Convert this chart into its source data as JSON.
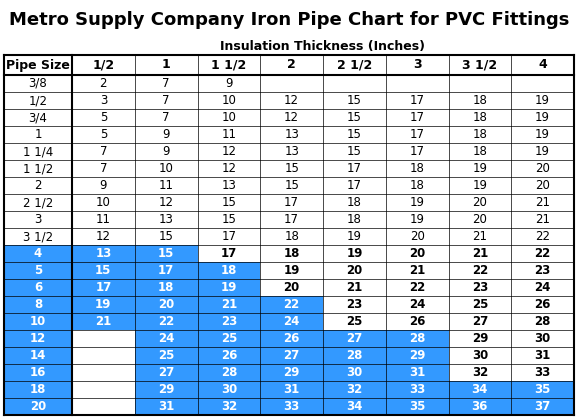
{
  "title": "Metro Supply Company Iron Pipe Chart for PVC Fittings",
  "subtitle": "Insulation Thickness (Inches)",
  "col_label": "Pipe Size",
  "columns": [
    "1/2",
    "1",
    "1 1/2",
    "2",
    "2 1/2",
    "3",
    "3 1/2",
    "4"
  ],
  "rows": [
    {
      "pipe": "3/8",
      "bold": false,
      "values": [
        2,
        7,
        9,
        null,
        null,
        null,
        null,
        null
      ],
      "blue_cols": []
    },
    {
      "pipe": "1/2",
      "bold": false,
      "values": [
        3,
        7,
        10,
        12,
        15,
        17,
        18,
        19
      ],
      "blue_cols": []
    },
    {
      "pipe": "3/4",
      "bold": false,
      "values": [
        5,
        7,
        10,
        12,
        15,
        17,
        18,
        19
      ],
      "blue_cols": []
    },
    {
      "pipe": "1",
      "bold": false,
      "values": [
        5,
        9,
        11,
        13,
        15,
        17,
        18,
        19
      ],
      "blue_cols": []
    },
    {
      "pipe": "1 1/4",
      "bold": false,
      "values": [
        7,
        9,
        12,
        13,
        15,
        17,
        18,
        19
      ],
      "blue_cols": []
    },
    {
      "pipe": "1 1/2",
      "bold": false,
      "values": [
        7,
        10,
        12,
        15,
        17,
        18,
        19,
        20
      ],
      "blue_cols": []
    },
    {
      "pipe": "2",
      "bold": false,
      "values": [
        9,
        11,
        13,
        15,
        17,
        18,
        19,
        20
      ],
      "blue_cols": []
    },
    {
      "pipe": "2 1/2",
      "bold": false,
      "values": [
        10,
        12,
        15,
        17,
        18,
        19,
        20,
        21
      ],
      "blue_cols": []
    },
    {
      "pipe": "3",
      "bold": false,
      "values": [
        11,
        13,
        15,
        17,
        18,
        19,
        20,
        21
      ],
      "blue_cols": []
    },
    {
      "pipe": "3 1/2",
      "bold": false,
      "values": [
        12,
        15,
        17,
        18,
        19,
        20,
        21,
        22
      ],
      "blue_cols": []
    },
    {
      "pipe": "4",
      "bold": true,
      "values": [
        13,
        15,
        17,
        18,
        19,
        20,
        21,
        22
      ],
      "blue_cols": [
        0,
        1
      ],
      "blue_pipe": true
    },
    {
      "pipe": "5",
      "bold": true,
      "values": [
        15,
        17,
        18,
        19,
        20,
        21,
        22,
        23
      ],
      "blue_cols": [
        0,
        1,
        2
      ],
      "blue_pipe": true
    },
    {
      "pipe": "6",
      "bold": true,
      "values": [
        17,
        18,
        19,
        20,
        21,
        22,
        23,
        24
      ],
      "blue_cols": [
        0,
        1,
        2
      ],
      "blue_pipe": true
    },
    {
      "pipe": "8",
      "bold": true,
      "values": [
        19,
        20,
        21,
        22,
        23,
        24,
        25,
        26
      ],
      "blue_cols": [
        0,
        1,
        2,
        3
      ],
      "blue_pipe": true
    },
    {
      "pipe": "10",
      "bold": true,
      "values": [
        21,
        22,
        23,
        24,
        25,
        26,
        27,
        28
      ],
      "blue_cols": [
        0,
        1,
        2,
        3
      ],
      "blue_pipe": true
    },
    {
      "pipe": "12",
      "bold": true,
      "values": [
        null,
        24,
        25,
        26,
        27,
        28,
        29,
        30
      ],
      "blue_cols": [
        1,
        2,
        3,
        4,
        5
      ],
      "blue_pipe": true
    },
    {
      "pipe": "14",
      "bold": true,
      "values": [
        null,
        25,
        26,
        27,
        28,
        29,
        30,
        31
      ],
      "blue_cols": [
        1,
        2,
        3,
        4,
        5
      ],
      "blue_pipe": true
    },
    {
      "pipe": "16",
      "bold": true,
      "values": [
        null,
        27,
        28,
        29,
        30,
        31,
        32,
        33
      ],
      "blue_cols": [
        1,
        2,
        3,
        4,
        5
      ],
      "blue_pipe": true
    },
    {
      "pipe": "18",
      "bold": true,
      "values": [
        null,
        29,
        30,
        31,
        32,
        33,
        34,
        35
      ],
      "blue_cols": [
        1,
        2,
        3,
        4,
        5,
        6,
        7
      ],
      "blue_pipe": true
    },
    {
      "pipe": "20",
      "bold": true,
      "values": [
        null,
        31,
        32,
        33,
        34,
        35,
        36,
        37
      ],
      "blue_cols": [
        1,
        2,
        3,
        4,
        5,
        6,
        7
      ],
      "blue_pipe": true
    }
  ],
  "blue_color": "#3399FF",
  "white_color": "#FFFFFF",
  "black_color": "#000000",
  "bg_color": "#FFFFFF",
  "title_fontsize": 13,
  "subtitle_fontsize": 9,
  "cell_fontsize": 8.5,
  "header_fontsize": 9
}
